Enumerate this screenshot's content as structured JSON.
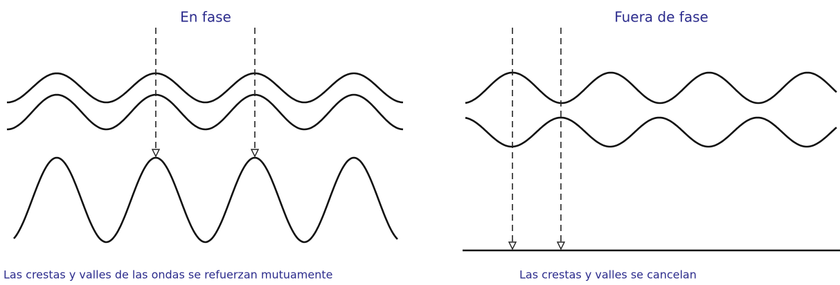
{
  "panels": [
    {
      "title": "En fase",
      "caption": "Las crestas y valles de las ondas se refuerzan mutuamente"
    },
    {
      "title": "Fuera de fase",
      "caption": "Las crestas y valles se cancelan"
    }
  ]
}
